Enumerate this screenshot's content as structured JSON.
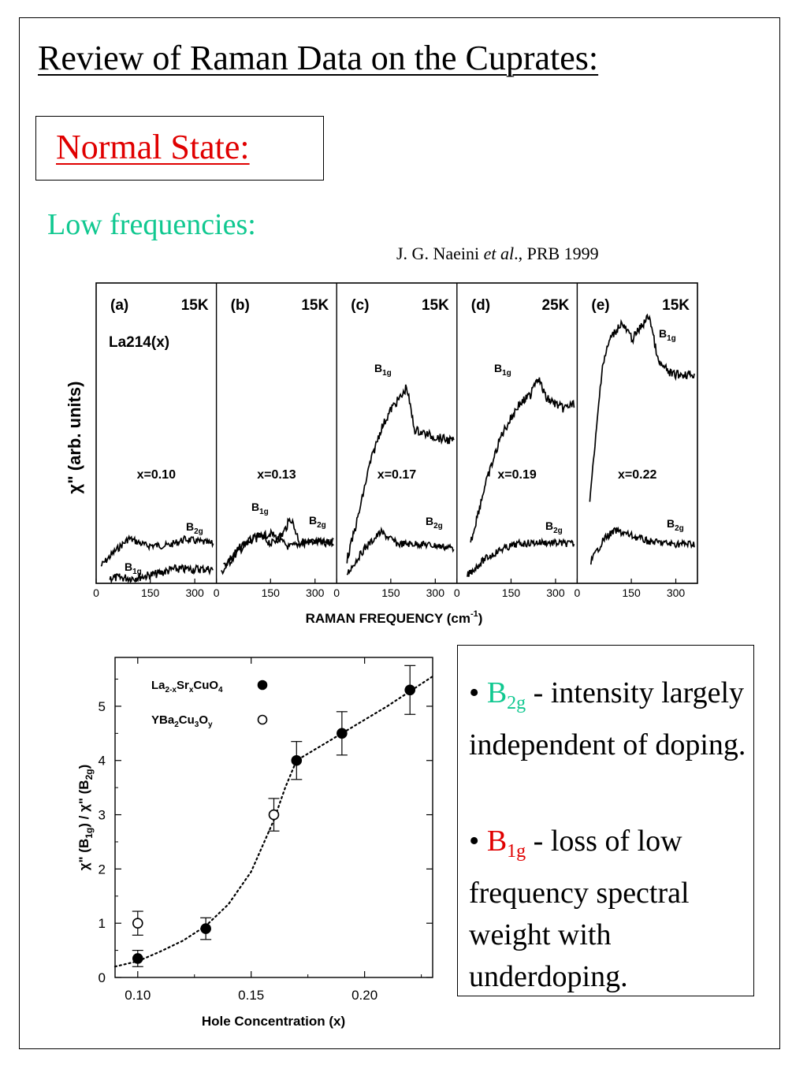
{
  "slide": {
    "title": "Review of Raman Data on the Cuprates:",
    "normal_state": "Normal State:",
    "low_frequencies": "Low frequencies:",
    "citation": {
      "author": "J. G. Naeini ",
      "etal": "et al",
      "rest": "., PRB 1999"
    }
  },
  "colors": {
    "teal": "#10c890",
    "red": "#e00000",
    "ink": "#000000"
  },
  "spectra": {
    "ylabel_main": "χ\" (arb. units)",
    "xlabel_main": "RAMAN FREQUENCY (cm",
    "xlabel_sup": "-1",
    "xlabel_end": ")",
    "sample": "La214(x)",
    "b1g_main": "B",
    "b1g_sub": "1g",
    "b2g_main": "B",
    "b2g_sub": "2g",
    "panels": [
      {
        "label": "(a)",
        "temp": "15K",
        "x": "x=0.10",
        "ticks": [
          "0",
          "150",
          "300"
        ]
      },
      {
        "label": "(b)",
        "temp": "15K",
        "x": "x=0.13",
        "ticks": [
          "0",
          "150",
          "300"
        ]
      },
      {
        "label": "(c)",
        "temp": "15K",
        "x": "x=0.17",
        "ticks": [
          "0",
          "150",
          "300"
        ]
      },
      {
        "label": "(d)",
        "temp": "25K",
        "x": "x=0.19",
        "ticks": [
          "0",
          "150",
          "300"
        ]
      },
      {
        "label": "(e)",
        "temp": "15K",
        "x": "x=0.22",
        "ticks": [
          "0",
          "150",
          "300"
        ]
      }
    ]
  },
  "chart_data": {
    "type": "scatter",
    "xlabel": "Hole Concentration (x)",
    "ylabel_parts": [
      "χ\" (B",
      "1g",
      ") / χ\" (B",
      "2g",
      ")"
    ],
    "xlim": [
      0.09,
      0.23
    ],
    "ylim": [
      0,
      5.9
    ],
    "xticks": [
      "0.10",
      "0.15",
      "0.20"
    ],
    "yticks": [
      "0",
      "1",
      "2",
      "3",
      "4",
      "5"
    ],
    "legend_placement": "top-left",
    "series": [
      {
        "name_parts": [
          "La",
          "2-x",
          "Sr",
          "x",
          "CuO",
          "4"
        ],
        "marker": "filled",
        "points": [
          {
            "x": 0.1,
            "y": 0.35,
            "err": 0.15
          },
          {
            "x": 0.13,
            "y": 0.9,
            "err": 0.2
          },
          {
            "x": 0.17,
            "y": 4.0,
            "err": 0.35
          },
          {
            "x": 0.19,
            "y": 4.5,
            "err": 0.4
          },
          {
            "x": 0.22,
            "y": 5.3,
            "err": 0.45
          }
        ]
      },
      {
        "name_parts": [
          "YBa",
          "2",
          "Cu",
          "3",
          "O",
          "y"
        ],
        "marker": "open",
        "points": [
          {
            "x": 0.1,
            "y": 1.0,
            "err": 0.22
          },
          {
            "x": 0.16,
            "y": 3.0,
            "err": 0.3
          }
        ]
      }
    ],
    "fit_curve": [
      [
        0.09,
        0.2
      ],
      [
        0.1,
        0.3
      ],
      [
        0.11,
        0.48
      ],
      [
        0.12,
        0.68
      ],
      [
        0.13,
        0.95
      ],
      [
        0.14,
        1.35
      ],
      [
        0.15,
        1.95
      ],
      [
        0.16,
        2.9
      ],
      [
        0.165,
        3.5
      ],
      [
        0.17,
        4.0
      ],
      [
        0.19,
        4.5
      ],
      [
        0.21,
        5.0
      ],
      [
        0.23,
        5.55
      ]
    ]
  },
  "notes": {
    "items": [
      {
        "bullet": "• ",
        "sym": "B",
        "sub": "2g",
        "text": " - intensity largely independent of doping."
      },
      {
        "bullet": "• ",
        "sym": "B",
        "sub": "1g",
        "text": " - loss of low frequency spectral weight with underdoping."
      }
    ]
  }
}
